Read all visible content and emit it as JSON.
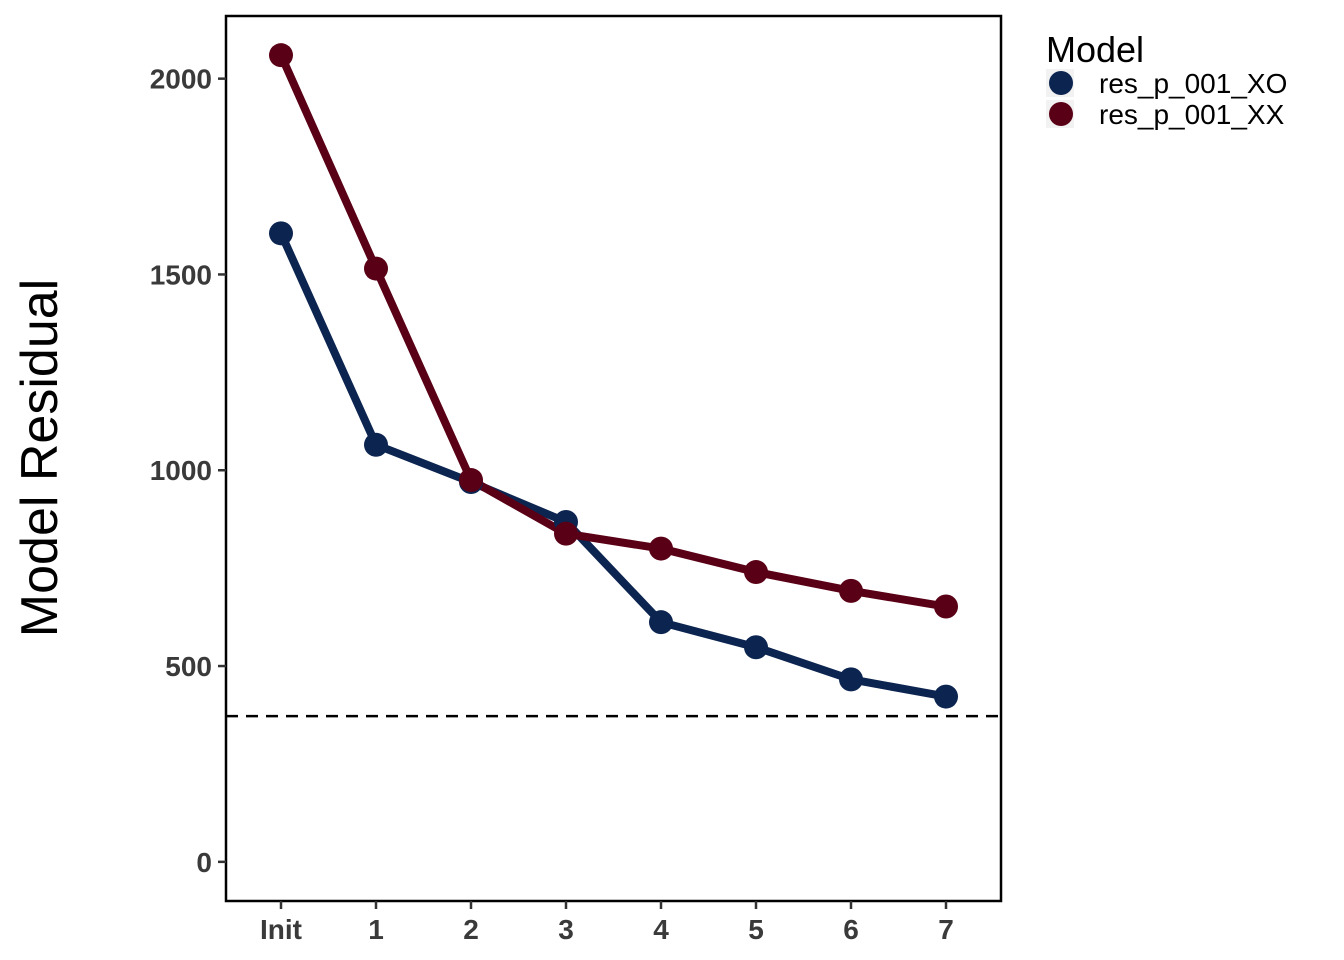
{
  "chart_data": {
    "type": "line",
    "categories": [
      "Init",
      "1",
      "2",
      "3",
      "4",
      "5",
      "6",
      "7"
    ],
    "ylabel": "Model Residual",
    "xlabel": "",
    "ylim": [
      -100,
      2160
    ],
    "yticks": [
      0,
      500,
      1000,
      1500,
      2000
    ],
    "reference_line": {
      "y": 372,
      "style": "dashed"
    },
    "grid": false,
    "legend": {
      "title": "Model",
      "placement": "top-right"
    },
    "series": [
      {
        "name": "res_p_001_XO",
        "color": "#0c2450",
        "values": [
          1605,
          1065,
          970,
          868,
          612,
          548,
          466,
          422
        ]
      },
      {
        "name": "res_p_001_XX",
        "color": "#5a0016",
        "values": [
          2060,
          1515,
          975,
          838,
          800,
          740,
          692,
          652
        ]
      }
    ]
  }
}
